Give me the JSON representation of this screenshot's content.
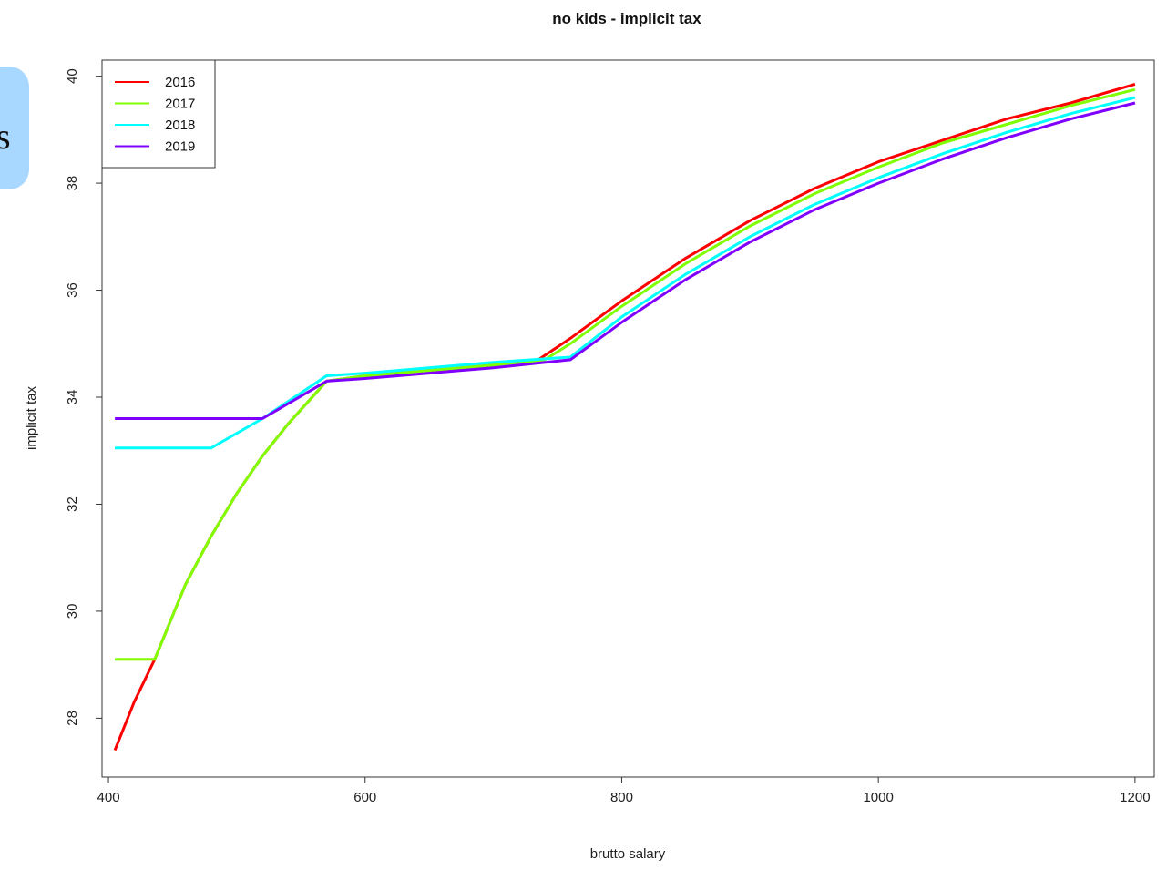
{
  "side_tab": {
    "text": "s",
    "color": "#a8d8ff"
  },
  "chart_data": {
    "type": "line",
    "title": "no kids  - implicit tax",
    "xlabel": "brutto salary",
    "ylabel": "implicit tax",
    "xlim": [
      395,
      1215
    ],
    "ylim": [
      26.9,
      40.3
    ],
    "x_ticks": [
      400,
      600,
      800,
      1000,
      1200
    ],
    "y_ticks": [
      28,
      30,
      32,
      34,
      36,
      38,
      40
    ],
    "grid": false,
    "legend_position": "top-left",
    "series": [
      {
        "name": "2016",
        "color": "#ff0000",
        "points": [
          [
            405,
            27.4
          ],
          [
            420,
            28.3
          ],
          [
            436,
            29.1
          ],
          [
            460,
            30.5
          ],
          [
            480,
            31.4
          ],
          [
            500,
            32.2
          ],
          [
            520,
            32.9
          ],
          [
            540,
            33.5
          ],
          [
            555,
            33.9
          ],
          [
            570,
            34.3
          ],
          [
            600,
            34.4
          ],
          [
            650,
            34.5
          ],
          [
            700,
            34.6
          ],
          [
            735,
            34.7
          ],
          [
            760,
            35.1
          ],
          [
            800,
            35.8
          ],
          [
            850,
            36.6
          ],
          [
            900,
            37.3
          ],
          [
            950,
            37.9
          ],
          [
            1000,
            38.4
          ],
          [
            1050,
            38.8
          ],
          [
            1100,
            39.2
          ],
          [
            1150,
            39.5
          ],
          [
            1200,
            39.85
          ]
        ]
      },
      {
        "name": "2017",
        "color": "#80ff00",
        "points": [
          [
            405,
            29.1
          ],
          [
            436,
            29.1
          ],
          [
            460,
            30.5
          ],
          [
            480,
            31.4
          ],
          [
            500,
            32.2
          ],
          [
            520,
            32.9
          ],
          [
            540,
            33.5
          ],
          [
            555,
            33.9
          ],
          [
            570,
            34.3
          ],
          [
            600,
            34.4
          ],
          [
            650,
            34.5
          ],
          [
            700,
            34.6
          ],
          [
            740,
            34.7
          ],
          [
            760,
            35.0
          ],
          [
            800,
            35.7
          ],
          [
            850,
            36.5
          ],
          [
            900,
            37.2
          ],
          [
            950,
            37.8
          ],
          [
            1000,
            38.3
          ],
          [
            1050,
            38.75
          ],
          [
            1100,
            39.1
          ],
          [
            1150,
            39.45
          ],
          [
            1200,
            39.75
          ]
        ]
      },
      {
        "name": "2018",
        "color": "#00ffff",
        "points": [
          [
            405,
            33.05
          ],
          [
            480,
            33.05
          ],
          [
            520,
            33.6
          ],
          [
            570,
            34.4
          ],
          [
            600,
            34.45
          ],
          [
            650,
            34.55
          ],
          [
            700,
            34.65
          ],
          [
            760,
            34.75
          ],
          [
            800,
            35.5
          ],
          [
            850,
            36.3
          ],
          [
            900,
            37.0
          ],
          [
            950,
            37.6
          ],
          [
            1000,
            38.1
          ],
          [
            1050,
            38.55
          ],
          [
            1100,
            38.95
          ],
          [
            1150,
            39.3
          ],
          [
            1200,
            39.6
          ]
        ]
      },
      {
        "name": "2019",
        "color": "#8000ff",
        "points": [
          [
            405,
            33.6
          ],
          [
            520,
            33.6
          ],
          [
            570,
            34.3
          ],
          [
            600,
            34.35
          ],
          [
            650,
            34.45
          ],
          [
            700,
            34.55
          ],
          [
            760,
            34.7
          ],
          [
            800,
            35.4
          ],
          [
            850,
            36.2
          ],
          [
            900,
            36.9
          ],
          [
            950,
            37.5
          ],
          [
            1000,
            38.0
          ],
          [
            1050,
            38.45
          ],
          [
            1100,
            38.85
          ],
          [
            1150,
            39.2
          ],
          [
            1200,
            39.5
          ]
        ]
      }
    ]
  }
}
